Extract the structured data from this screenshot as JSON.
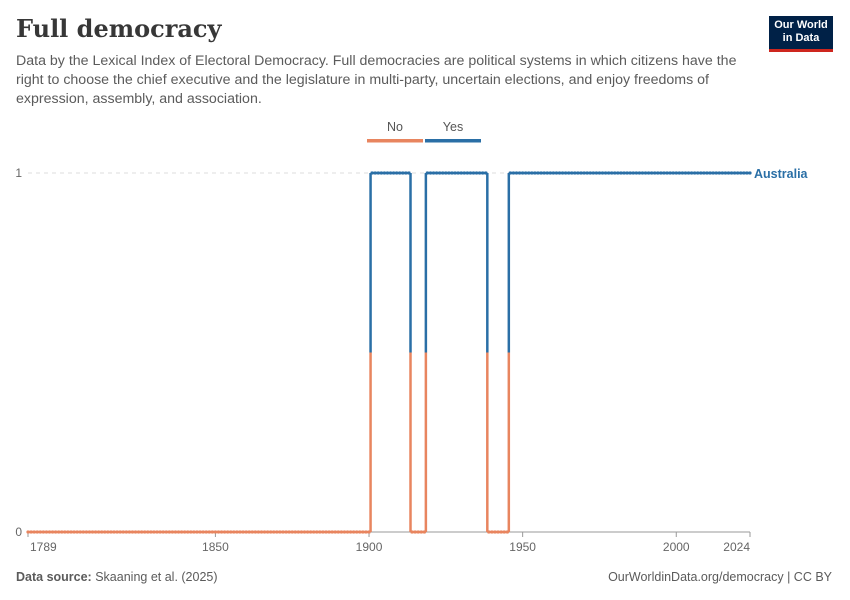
{
  "header": {
    "title": "Full democracy",
    "subtitle": "Data by the Lexical Index of Electoral Democracy. Full democracies are political systems in which citizens have the right to choose the chief executive and the legislature in multi-party, uncertain elections, and enjoy freedoms of expression, assembly, and association."
  },
  "logo": {
    "line1": "Our World",
    "line2": "in Data",
    "bg": "#002147",
    "accent": "#ce261e"
  },
  "footer": {
    "source_label": "Data source:",
    "source_text": "Skaaning et al. (2025)",
    "url": "OurWorldinData.org/democracy | CC BY"
  },
  "chart_data": {
    "type": "line",
    "title": "Full democracy",
    "xlim": [
      1789,
      2024
    ],
    "ylim": [
      0,
      1
    ],
    "x_ticks": [
      "1789",
      "1850",
      "1900",
      "1950",
      "2000",
      "2024"
    ],
    "y_ticks": [
      "0",
      "1"
    ],
    "legend": [
      {
        "label": "No",
        "color": "#e8855f"
      },
      {
        "label": "Yes",
        "color": "#2a6fa6"
      }
    ],
    "legend_placement": "top-center",
    "series": [
      {
        "name": "Australia",
        "color_yes": "#2a6fa6",
        "color_no": "#e8855f",
        "segments": [
          {
            "from": 1789,
            "to": 1900,
            "value": 0
          },
          {
            "from": 1901,
            "to": 1913,
            "value": 1
          },
          {
            "from": 1914,
            "to": 1918,
            "value": 0
          },
          {
            "from": 1919,
            "to": 1938,
            "value": 1
          },
          {
            "from": 1939,
            "to": 1945,
            "value": 0
          },
          {
            "from": 1946,
            "to": 2024,
            "value": 1
          }
        ]
      }
    ],
    "grid": "horizontal dashed at y=1"
  }
}
